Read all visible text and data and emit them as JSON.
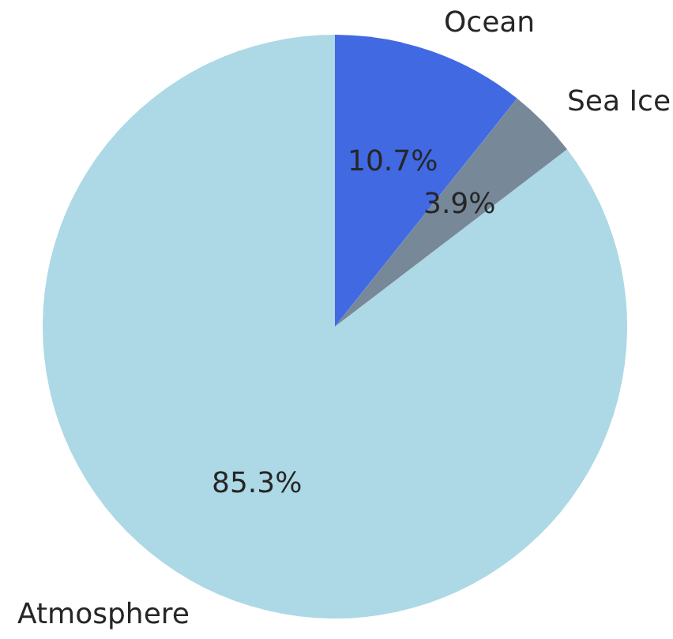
{
  "chart_data": {
    "type": "pie",
    "categories": [
      "Atmosphere",
      "Sea Ice",
      "Ocean"
    ],
    "values": [
      85.3,
      3.9,
      10.7
    ],
    "colors": [
      "#add8e6",
      "#778899",
      "#4169e1"
    ],
    "value_labels": [
      "85.3%",
      "3.9%",
      "10.7%"
    ],
    "legend": false
  }
}
